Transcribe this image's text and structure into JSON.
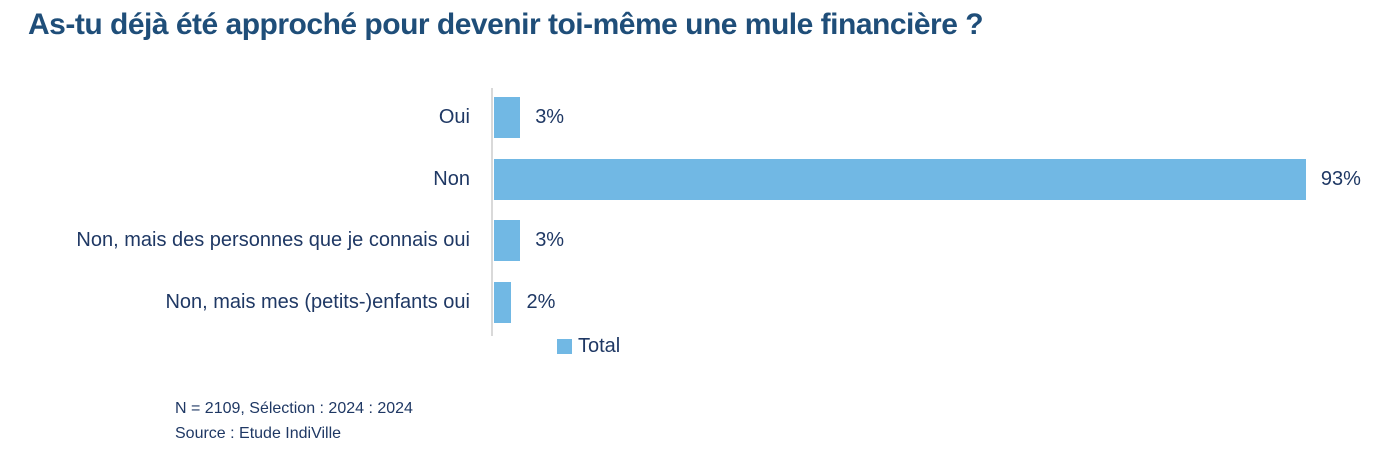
{
  "page": {
    "title": "As-tu déjà été approché pour devenir toi-même une mule financière ?"
  },
  "chart_data": {
    "type": "bar",
    "orientation": "horizontal",
    "title": "As-tu déjà été approché pour devenir toi-même une mule financière ?",
    "categories": [
      "Oui",
      "Non",
      "Non, mais des personnes que je connais oui",
      "Non, mais mes (petits-)enfants oui"
    ],
    "series": [
      {
        "name": "Total",
        "values": [
          3,
          93,
          3,
          2
        ]
      }
    ],
    "values": [
      3,
      93,
      3,
      2
    ],
    "value_labels": [
      "3%",
      "93%",
      "3%",
      "2%"
    ],
    "series_name": "Total",
    "xlabel": "",
    "ylabel": "",
    "xlim": [
      0,
      100
    ],
    "grid": false,
    "legend_position": "bottom"
  },
  "legend": {
    "label": "Total"
  },
  "footer": {
    "line1": "N = 2109, Sélection : 2024 : 2024",
    "line2": "Source : Etude IndiVille"
  },
  "colors": {
    "title": "#1F4E79",
    "text": "#1F3864",
    "bar": "#71B8E4",
    "axis": "#D9D9D9"
  }
}
